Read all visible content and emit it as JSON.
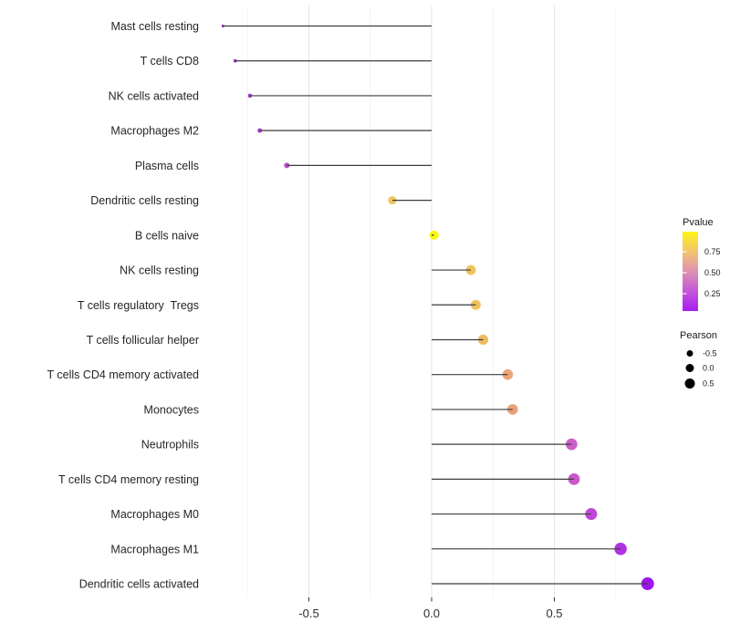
{
  "chart_data": {
    "type": "lollipop",
    "title": "",
    "xlabel": "",
    "ylabel": "",
    "x_axis": {
      "ticks": [
        -0.5,
        0.0,
        0.5
      ],
      "tick_labels": [
        "-0.5",
        "0.0",
        "0.5"
      ],
      "minor_gridlines": [
        -0.75,
        -0.25,
        0.25,
        0.75
      ],
      "range": [
        -0.91,
        0.93
      ],
      "grid": true
    },
    "categories": [
      "Mast cells resting",
      "T cells CD8",
      "NK cells activated",
      "Macrophages M2",
      "Plasma cells",
      "Dendritic cells resting",
      "B cells naive",
      "NK cells resting",
      "T cells regulatory  Tregs",
      "T cells follicular helper",
      "T cells CD4 memory activated",
      "Monocytes",
      "Neutrophils",
      "T cells CD4 memory resting",
      "Macrophages M0",
      "Macrophages M1",
      "Dendritic cells activated"
    ],
    "series": [
      {
        "name": "Pearson",
        "values": [
          -0.85,
          -0.8,
          -0.74,
          -0.7,
          -0.59,
          -0.16,
          0.01,
          0.16,
          0.18,
          0.21,
          0.31,
          0.33,
          0.57,
          0.58,
          0.65,
          0.77,
          0.88
        ]
      }
    ],
    "point_colors": [
      "#8D2BC9",
      "#962EC9",
      "#A237CA",
      "#A93CC8",
      "#B851C5",
      "#F1C75F",
      "#FAF60F",
      "#F0C45E",
      "#F0C25F",
      "#EFBC62",
      "#ECA577",
      "#EBA07B",
      "#CC5EC7",
      "#C958C9",
      "#BE47D8",
      "#AF33E3",
      "#9D15EB"
    ],
    "pvalue_color_estimate": [
      0.08,
      0.1,
      0.13,
      0.15,
      0.25,
      0.62,
      0.93,
      0.6,
      0.58,
      0.55,
      0.45,
      0.43,
      0.27,
      0.25,
      0.19,
      0.12,
      0.05
    ],
    "legends": {
      "pvalue": {
        "title": "Pvalue",
        "tick_labels": [
          "0.75",
          "0.50",
          "0.25"
        ],
        "tick_values": [
          0.75,
          0.5,
          0.25
        ],
        "gradient": [
          {
            "offset": 0,
            "color": "#FCF515"
          },
          {
            "offset": 0.25,
            "color": "#F3C46E"
          },
          {
            "offset": 0.5,
            "color": "#DE92B0"
          },
          {
            "offset": 0.75,
            "color": "#C457D9"
          },
          {
            "offset": 1,
            "color": "#A91CF0"
          }
        ]
      },
      "pearson": {
        "title": "Pearson",
        "labels": [
          "-0.5",
          "0.0",
          "0.5"
        ],
        "values": [
          -0.5,
          0.0,
          0.5
        ],
        "dot_color": "#000000"
      }
    },
    "stem_color": "#3D3D3D",
    "background": "#FFFFFF",
    "major_gridline_color": "#E4E4E4",
    "minor_gridline_color": "#F0F0F0",
    "axis_tick_color": "#333333"
  }
}
